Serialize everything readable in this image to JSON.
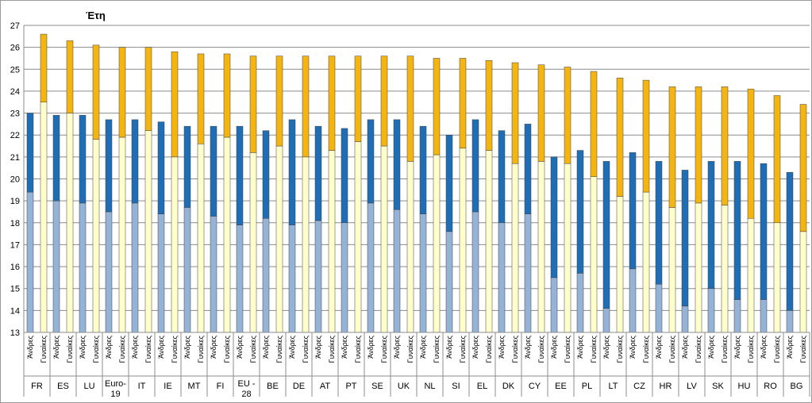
{
  "chart_data": {
    "type": "bar",
    "stacked": true,
    "title": "Έτη",
    "ylim": [
      13,
      27
    ],
    "yticks": [
      13,
      14,
      15,
      16,
      17,
      18,
      19,
      20,
      21,
      22,
      23,
      24,
      25,
      26,
      27
    ],
    "grid": true,
    "sublabels": {
      "men": "Άνδρες",
      "women": "Γυναίκες"
    },
    "colors": {
      "men_base": "#95b3d7",
      "men_top": "#1f6db5",
      "women_base": "#ffffcc",
      "women_top": "#f5b510",
      "edge": "#404040"
    },
    "groups": [
      {
        "label": [
          "FR"
        ],
        "men": [
          19.4,
          23.0
        ],
        "women": [
          23.5,
          26.6
        ]
      },
      {
        "label": [
          "ES"
        ],
        "men": [
          19.0,
          22.9
        ],
        "women": [
          23.0,
          26.3
        ]
      },
      {
        "label": [
          "LU"
        ],
        "men": [
          18.9,
          22.9
        ],
        "women": [
          21.8,
          26.1
        ]
      },
      {
        "label": [
          "Euro-",
          "19"
        ],
        "men": [
          18.5,
          22.7
        ],
        "women": [
          21.9,
          26.0
        ]
      },
      {
        "label": [
          "IT"
        ],
        "men": [
          18.9,
          22.7
        ],
        "women": [
          22.2,
          26.0
        ]
      },
      {
        "label": [
          "IE"
        ],
        "men": [
          18.4,
          22.6
        ],
        "women": [
          21.0,
          25.8
        ]
      },
      {
        "label": [
          "MT"
        ],
        "men": [
          18.7,
          22.4
        ],
        "women": [
          21.6,
          25.7
        ]
      },
      {
        "label": [
          "FI"
        ],
        "men": [
          18.3,
          22.4
        ],
        "women": [
          21.9,
          25.7
        ]
      },
      {
        "label": [
          "EU -",
          "28"
        ],
        "men": [
          17.9,
          22.4
        ],
        "women": [
          21.2,
          25.6
        ]
      },
      {
        "label": [
          "BE"
        ],
        "men": [
          18.2,
          22.2
        ],
        "women": [
          21.5,
          25.6
        ]
      },
      {
        "label": [
          "DE"
        ],
        "men": [
          17.9,
          22.7
        ],
        "women": [
          21.0,
          25.6
        ]
      },
      {
        "label": [
          "AT"
        ],
        "men": [
          18.1,
          22.4
        ],
        "women": [
          21.3,
          25.6
        ]
      },
      {
        "label": [
          "PT"
        ],
        "men": [
          18.0,
          22.3
        ],
        "women": [
          21.7,
          25.6
        ]
      },
      {
        "label": [
          "SE"
        ],
        "men": [
          18.9,
          22.7
        ],
        "women": [
          21.5,
          25.6
        ]
      },
      {
        "label": [
          "UK"
        ],
        "men": [
          18.6,
          22.7
        ],
        "women": [
          20.8,
          25.6
        ]
      },
      {
        "label": [
          "NL"
        ],
        "men": [
          18.4,
          22.4
        ],
        "women": [
          21.1,
          25.5
        ]
      },
      {
        "label": [
          "SI"
        ],
        "men": [
          17.6,
          22.0
        ],
        "women": [
          21.4,
          25.5
        ]
      },
      {
        "label": [
          "EL"
        ],
        "men": [
          18.5,
          22.7
        ],
        "women": [
          21.3,
          25.4
        ]
      },
      {
        "label": [
          "DK"
        ],
        "men": [
          18.0,
          22.2
        ],
        "women": [
          20.7,
          25.3
        ]
      },
      {
        "label": [
          "CY"
        ],
        "men": [
          18.4,
          22.5
        ],
        "women": [
          20.8,
          25.2
        ]
      },
      {
        "label": [
          "EE"
        ],
        "men": [
          15.5,
          21.0
        ],
        "women": [
          20.7,
          25.1
        ]
      },
      {
        "label": [
          "PL"
        ],
        "men": [
          15.7,
          21.3
        ],
        "women": [
          20.1,
          24.9
        ]
      },
      {
        "label": [
          "LT"
        ],
        "men": [
          14.1,
          20.8
        ],
        "women": [
          19.2,
          24.6
        ]
      },
      {
        "label": [
          "CZ"
        ],
        "men": [
          15.9,
          21.2
        ],
        "women": [
          19.4,
          24.5
        ]
      },
      {
        "label": [
          "HR"
        ],
        "men": [
          15.2,
          20.8
        ],
        "women": [
          18.7,
          24.2
        ]
      },
      {
        "label": [
          "LV"
        ],
        "men": [
          14.2,
          20.4
        ],
        "women": [
          18.9,
          24.2
        ]
      },
      {
        "label": [
          "SK"
        ],
        "men": [
          15.0,
          20.8
        ],
        "women": [
          18.8,
          24.2
        ]
      },
      {
        "label": [
          "HU"
        ],
        "men": [
          14.5,
          20.8
        ],
        "women": [
          18.2,
          24.1
        ]
      },
      {
        "label": [
          "RO"
        ],
        "men": [
          14.5,
          20.7
        ],
        "women": [
          18.0,
          23.8
        ]
      },
      {
        "label": [
          "BG"
        ],
        "men": [
          14.0,
          20.3
        ],
        "women": [
          17.6,
          23.4
        ]
      }
    ]
  }
}
